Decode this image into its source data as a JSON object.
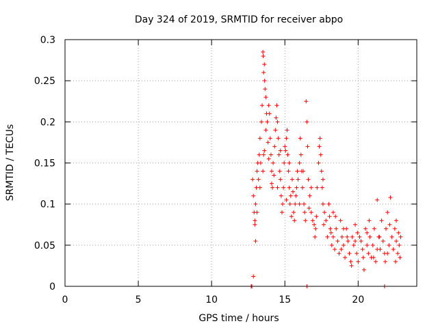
{
  "chart_data": {
    "type": "scatter",
    "title": "Day 324 of 2019, SRMTID for receiver abpo",
    "xlabel": "GPS time / hours",
    "ylabel": "SRMTID / TECUs",
    "xlim": [
      0,
      24
    ],
    "ylim": [
      0,
      0.3
    ],
    "xticks": [
      0,
      5,
      10,
      15,
      20
    ],
    "xtick_labels": [
      "0",
      "5",
      "10",
      "15",
      "20"
    ],
    "yticks": [
      0,
      0.05,
      0.1,
      0.15,
      0.2,
      0.25,
      0.3
    ],
    "ytick_labels": [
      "0",
      "0.05",
      "0.1",
      "0.15",
      "0.2",
      "0.25",
      "0.3"
    ],
    "grid": true,
    "marker": "+",
    "color": "#ff0000",
    "series": [
      {
        "name": "SRMTID",
        "points": [
          [
            12.7,
            0.0
          ],
          [
            12.75,
            0.0
          ],
          [
            12.85,
            0.012
          ],
          [
            16.5,
            0.0
          ],
          [
            21.8,
            0.0
          ],
          [
            12.8,
            0.13
          ],
          [
            12.85,
            0.11
          ],
          [
            12.9,
            0.09
          ],
          [
            12.95,
            0.08
          ],
          [
            13.0,
            0.1
          ],
          [
            13.05,
            0.12
          ],
          [
            13.1,
            0.14
          ],
          [
            13.15,
            0.15
          ],
          [
            13.0,
            0.055
          ],
          [
            12.95,
            0.075
          ],
          [
            13.1,
            0.09
          ],
          [
            13.2,
            0.13
          ],
          [
            13.25,
            0.16
          ],
          [
            13.3,
            0.18
          ],
          [
            13.35,
            0.15
          ],
          [
            13.4,
            0.2
          ],
          [
            13.45,
            0.22
          ],
          [
            13.5,
            0.285
          ],
          [
            13.52,
            0.28
          ],
          [
            13.55,
            0.26
          ],
          [
            13.6,
            0.27
          ],
          [
            13.62,
            0.25
          ],
          [
            13.65,
            0.24
          ],
          [
            13.7,
            0.23
          ],
          [
            13.75,
            0.21
          ],
          [
            13.5,
            0.14
          ],
          [
            13.55,
            0.16
          ],
          [
            13.6,
            0.165
          ],
          [
            13.7,
            0.19
          ],
          [
            13.8,
            0.2
          ],
          [
            13.85,
            0.175
          ],
          [
            13.9,
            0.22
          ],
          [
            13.95,
            0.21
          ],
          [
            14.0,
            0.18
          ],
          [
            14.05,
            0.16
          ],
          [
            14.1,
            0.14
          ],
          [
            14.15,
            0.12
          ],
          [
            14.2,
            0.15
          ],
          [
            14.3,
            0.17
          ],
          [
            14.35,
            0.19
          ],
          [
            14.4,
            0.205
          ],
          [
            14.45,
            0.22
          ],
          [
            14.5,
            0.2
          ],
          [
            14.55,
            0.18
          ],
          [
            14.6,
            0.16
          ],
          [
            14.65,
            0.14
          ],
          [
            14.7,
            0.13
          ],
          [
            14.75,
            0.11
          ],
          [
            14.8,
            0.09
          ],
          [
            14.85,
            0.1
          ],
          [
            14.9,
            0.12
          ],
          [
            14.95,
            0.15
          ],
          [
            15.0,
            0.17
          ],
          [
            15.05,
            0.165
          ],
          [
            15.1,
            0.18
          ],
          [
            15.15,
            0.19
          ],
          [
            15.2,
            0.16
          ],
          [
            15.25,
            0.14
          ],
          [
            15.3,
            0.12
          ],
          [
            15.35,
            0.1
          ],
          [
            15.4,
            0.11
          ],
          [
            15.5,
            0.13
          ],
          [
            15.55,
            0.115
          ],
          [
            15.6,
            0.09
          ],
          [
            15.65,
            0.08
          ],
          [
            15.7,
            0.1
          ],
          [
            15.8,
            0.12
          ],
          [
            15.85,
            0.14
          ],
          [
            15.9,
            0.13
          ],
          [
            16.0,
            0.15
          ],
          [
            16.05,
            0.18
          ],
          [
            16.1,
            0.16
          ],
          [
            16.15,
            0.14
          ],
          [
            16.2,
            0.12
          ],
          [
            16.3,
            0.1
          ],
          [
            16.35,
            0.09
          ],
          [
            16.4,
            0.08
          ],
          [
            16.45,
            0.225
          ],
          [
            16.5,
            0.2
          ],
          [
            16.55,
            0.17
          ],
          [
            16.6,
            0.13
          ],
          [
            16.7,
            0.11
          ],
          [
            16.8,
            0.09
          ],
          [
            16.9,
            0.08
          ],
          [
            17.0,
            0.075
          ],
          [
            17.05,
            0.06
          ],
          [
            17.1,
            0.07
          ],
          [
            17.2,
            0.12
          ],
          [
            17.3,
            0.15
          ],
          [
            17.35,
            0.17
          ],
          [
            17.4,
            0.18
          ],
          [
            17.45,
            0.16
          ],
          [
            17.5,
            0.14
          ],
          [
            17.55,
            0.12
          ],
          [
            17.6,
            0.1
          ],
          [
            17.7,
            0.09
          ],
          [
            17.8,
            0.08
          ],
          [
            17.9,
            0.06
          ],
          [
            18.0,
            0.1
          ],
          [
            18.05,
            0.085
          ],
          [
            18.1,
            0.07
          ],
          [
            18.2,
            0.05
          ],
          [
            18.3,
            0.06
          ],
          [
            18.4,
            0.045
          ],
          [
            18.5,
            0.07
          ],
          [
            18.6,
            0.055
          ],
          [
            18.7,
            0.04
          ],
          [
            18.8,
            0.08
          ],
          [
            18.9,
            0.06
          ],
          [
            19.0,
            0.05
          ],
          [
            19.1,
            0.035
          ],
          [
            19.2,
            0.07
          ],
          [
            19.3,
            0.055
          ],
          [
            19.4,
            0.04
          ],
          [
            19.5,
            0.03
          ],
          [
            19.6,
            0.06
          ],
          [
            19.7,
            0.05
          ],
          [
            19.8,
            0.075
          ],
          [
            19.9,
            0.04
          ],
          [
            20.0,
            0.03
          ],
          [
            20.1,
            0.06
          ],
          [
            20.2,
            0.055
          ],
          [
            20.3,
            0.045
          ],
          [
            20.4,
            0.02
          ],
          [
            20.5,
            0.07
          ],
          [
            20.6,
            0.05
          ],
          [
            20.7,
            0.04
          ],
          [
            20.8,
            0.06
          ],
          [
            20.9,
            0.035
          ],
          [
            21.0,
            0.05
          ],
          [
            21.1,
            0.07
          ],
          [
            21.2,
            0.03
          ],
          [
            21.3,
            0.105
          ],
          [
            21.4,
            0.06
          ],
          [
            21.5,
            0.045
          ],
          [
            21.6,
            0.08
          ],
          [
            21.7,
            0.055
          ],
          [
            21.8,
            0.04
          ],
          [
            21.9,
            0.07
          ],
          [
            22.0,
            0.09
          ],
          [
            22.1,
            0.05
          ],
          [
            22.2,
            0.108
          ],
          [
            22.3,
            0.06
          ],
          [
            22.4,
            0.045
          ],
          [
            22.5,
            0.07
          ],
          [
            22.6,
            0.055
          ],
          [
            22.7,
            0.04
          ],
          [
            22.8,
            0.05
          ],
          [
            22.85,
            0.035
          ],
          [
            22.9,
            0.06
          ],
          [
            14.1,
            0.125
          ],
          [
            14.25,
            0.135
          ],
          [
            14.7,
            0.165
          ],
          [
            15.1,
            0.105
          ],
          [
            15.45,
            0.085
          ],
          [
            15.75,
            0.11
          ],
          [
            16.25,
            0.14
          ],
          [
            16.65,
            0.095
          ],
          [
            17.15,
            0.085
          ],
          [
            17.65,
            0.075
          ],
          [
            18.15,
            0.065
          ],
          [
            18.45,
            0.085
          ],
          [
            18.85,
            0.045
          ],
          [
            19.25,
            0.06
          ],
          [
            19.55,
            0.025
          ],
          [
            19.95,
            0.065
          ],
          [
            20.35,
            0.035
          ],
          [
            20.75,
            0.08
          ],
          [
            21.05,
            0.035
          ],
          [
            21.45,
            0.06
          ],
          [
            21.85,
            0.03
          ],
          [
            22.15,
            0.075
          ],
          [
            22.55,
            0.03
          ],
          [
            22.75,
            0.065
          ],
          [
            13.3,
            0.12
          ],
          [
            13.9,
            0.155
          ],
          [
            14.5,
            0.12
          ],
          [
            15.3,
            0.15
          ],
          [
            16.0,
            0.1
          ],
          [
            16.8,
            0.12
          ],
          [
            17.6,
            0.13
          ],
          [
            18.3,
            0.09
          ],
          [
            19.0,
            0.07
          ],
          [
            19.8,
            0.055
          ],
          [
            20.6,
            0.065
          ],
          [
            21.3,
            0.045
          ],
          [
            22.0,
            0.04
          ],
          [
            22.6,
            0.08
          ]
        ]
      }
    ]
  }
}
